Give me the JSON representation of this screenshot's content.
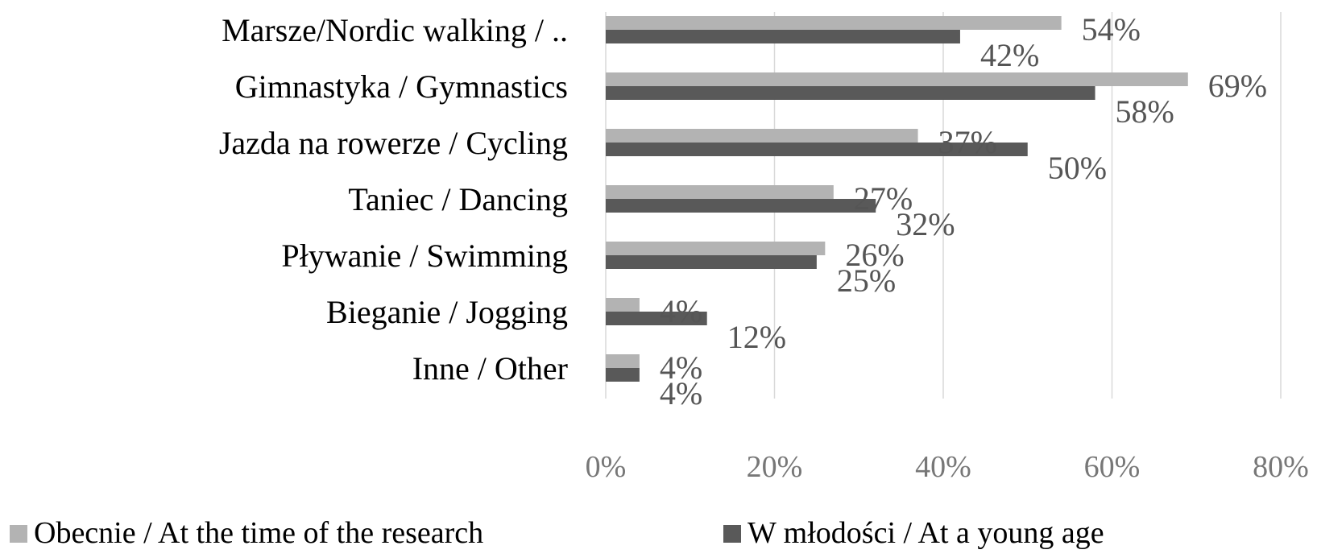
{
  "chart_data": {
    "type": "bar",
    "orientation": "horizontal",
    "categories": [
      "Marsze/Nordic walking / ..",
      "Gimnastyka / Gymnastics",
      "Jazda na rowerze / Cycling",
      "Taniec / Dancing",
      "Pływanie / Swimming",
      "Bieganie / Jogging",
      "Inne / Other"
    ],
    "series": [
      {
        "name": "Obecnie / At the time of the research",
        "values": [
          54,
          69,
          37,
          27,
          26,
          4,
          4
        ],
        "labels": [
          "54%",
          "69%",
          "37%",
          "27%",
          "26%",
          "4%",
          "4%"
        ],
        "color": "#b3b3b3"
      },
      {
        "name": "W młodości / At a young age",
        "values": [
          42,
          58,
          50,
          32,
          25,
          12,
          4
        ],
        "labels": [
          "42%",
          "58%",
          "50%",
          "32%",
          "25%",
          "12%",
          "4%"
        ],
        "color": "#595959"
      }
    ],
    "xticks": [
      "0%",
      "20%",
      "40%",
      "60%",
      "80%"
    ],
    "xlim": [
      0,
      80
    ],
    "grid": true,
    "legend_position": "bottom"
  }
}
